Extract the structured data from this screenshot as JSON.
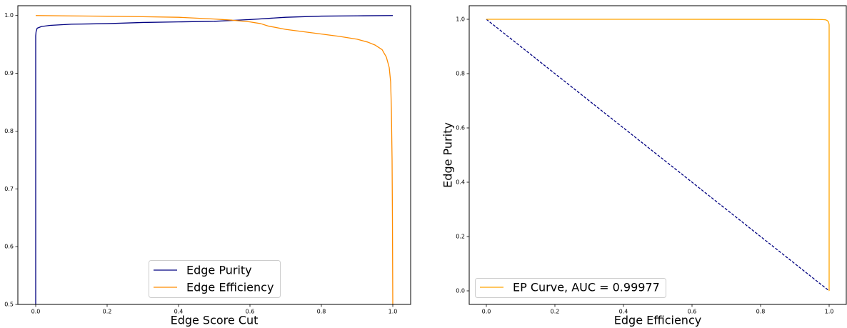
{
  "chart_data": [
    {
      "type": "line",
      "xlabel": "Edge Score Cut",
      "xlim": [
        -0.05,
        1.05
      ],
      "ylim": [
        0.5,
        1.017
      ],
      "xticks": [
        "0.0",
        "0.2",
        "0.4",
        "0.6",
        "0.8",
        "1.0"
      ],
      "yticks": [
        "0.5",
        "0.6",
        "0.7",
        "0.8",
        "0.9",
        "1.0"
      ],
      "grid": false,
      "legend_position": "bottom-center",
      "series": [
        {
          "name": "Edge Purity",
          "color": "#000080",
          "line_style": "solid",
          "x": [
            0.0,
            0.0,
            0.001,
            0.004,
            0.016,
            0.04,
            0.1,
            0.2,
            0.3,
            0.4,
            0.5,
            0.6,
            0.65,
            0.7,
            0.8,
            0.9,
            1.0
          ],
          "y": [
            0.5,
            0.965,
            0.972,
            0.978,
            0.981,
            0.983,
            0.985,
            0.986,
            0.988,
            0.989,
            0.99,
            0.993,
            0.995,
            0.997,
            0.999,
            0.9995,
            1.0
          ]
        },
        {
          "name": "Edge Efficiency",
          "color": "#ff8c00",
          "line_style": "solid",
          "x": [
            0.0,
            0.1,
            0.2,
            0.3,
            0.4,
            0.5,
            0.55,
            0.6,
            0.63,
            0.65,
            0.7,
            0.75,
            0.8,
            0.85,
            0.9,
            0.93,
            0.95,
            0.97,
            0.982,
            0.99,
            0.994,
            0.996,
            0.998,
            0.999,
            1.0
          ],
          "y": [
            1.0,
            0.9994,
            0.9988,
            0.998,
            0.997,
            0.994,
            0.992,
            0.989,
            0.986,
            0.982,
            0.976,
            0.972,
            0.968,
            0.964,
            0.959,
            0.954,
            0.949,
            0.941,
            0.928,
            0.91,
            0.885,
            0.84,
            0.75,
            0.65,
            0.5
          ]
        }
      ]
    },
    {
      "type": "line",
      "xlabel": "Edge Efficiency",
      "ylabel": "Edge Purity",
      "xlim": [
        -0.05,
        1.05
      ],
      "ylim": [
        -0.05,
        1.05
      ],
      "xticks": [
        "0.0",
        "0.2",
        "0.4",
        "0.6",
        "0.8",
        "1.0"
      ],
      "yticks": [
        "0.0",
        "0.2",
        "0.4",
        "0.6",
        "0.8",
        "1.0"
      ],
      "grid": false,
      "legend_position": "bottom-left",
      "series": [
        {
          "name": "EP Curve, AUC = 0.99977",
          "color": "#ffa500",
          "line_style": "solid",
          "x": [
            0.0,
            0.5,
            0.9,
            0.95,
            0.98,
            0.99,
            0.995,
            0.998,
            0.999,
            1.0,
            1.0
          ],
          "y": [
            1.0,
            1.0,
            0.9998,
            0.9995,
            0.999,
            0.998,
            0.995,
            0.99,
            0.986,
            0.98,
            0.0
          ]
        },
        {
          "color": "#000080",
          "line_style": "dashed",
          "x": [
            0.0,
            1.0
          ],
          "y": [
            1.0,
            0.0
          ]
        }
      ]
    }
  ]
}
